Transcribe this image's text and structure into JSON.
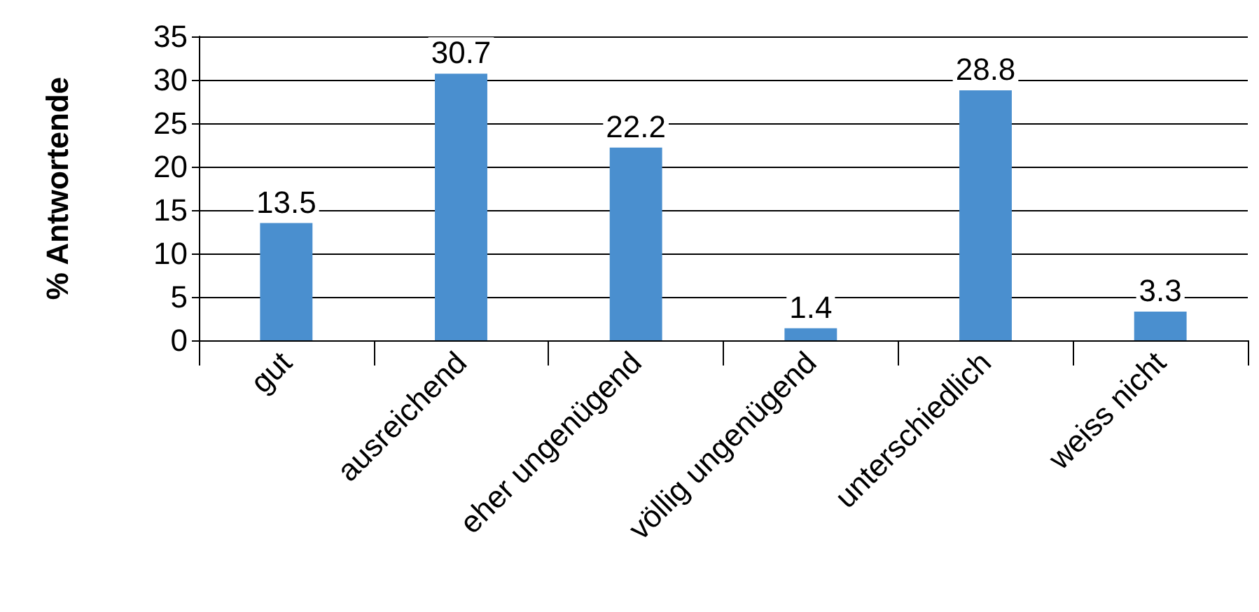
{
  "chart_data": {
    "type": "bar",
    "ylabel": "% Antwortende",
    "categories": [
      "gut",
      "ausreichend",
      "eher ungenügend",
      "völlig ungenügend",
      "unterschiedlich",
      "weiss nicht"
    ],
    "values": [
      13.5,
      30.7,
      22.2,
      1.4,
      28.8,
      3.3
    ],
    "color": "#4a8fcf",
    "ylim": [
      0,
      35
    ],
    "yticks": [
      0,
      5,
      10,
      15,
      20,
      25,
      30,
      35
    ],
    "grid": "y",
    "data_labels": true
  }
}
